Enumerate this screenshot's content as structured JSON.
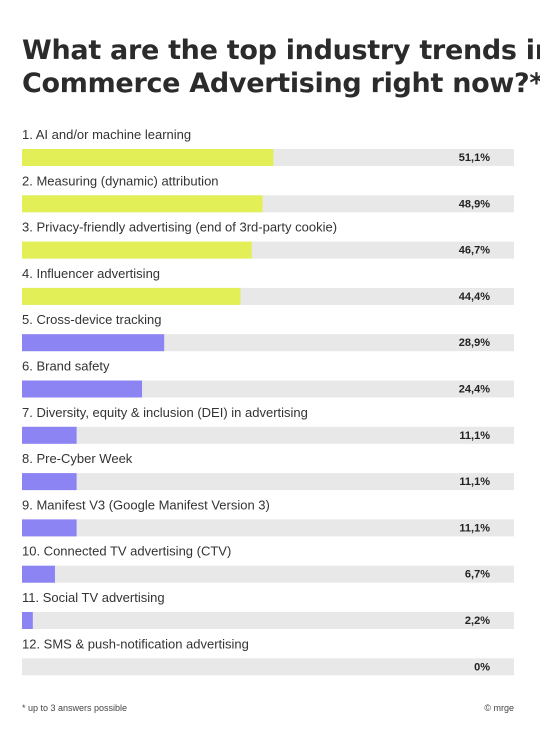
{
  "title_lines": [
    "What are the top industry trends in",
    "Commerce Advertising right now?*"
  ],
  "footnote": "* up to 3 answers possible",
  "credit": "© mrge",
  "colors": {
    "top": "#e3ef57",
    "rest": "#8c84f3",
    "track": "#e8e8e8"
  },
  "chart_data": {
    "type": "bar",
    "orientation": "horizontal",
    "title": "What are the top industry trends in Commerce Advertising right now?*",
    "categories": [
      "1. AI and/or machine learning",
      "2. Measuring (dynamic) attribution",
      "3. Privacy-friendly advertising (end of 3rd-party cookie)",
      "4. Influencer advertising",
      "5. Cross-device tracking",
      "6. Brand safety",
      "7. Diversity, equity & inclusion (DEI) in advertising",
      "8. Pre-Cyber Week",
      "9. Manifest V3 (Google Manifest Version 3)",
      "10. Connected TV advertising (CTV)",
      "11. Social TV advertising",
      "12. SMS & push-notification advertising"
    ],
    "values": [
      51.1,
      48.9,
      46.7,
      44.4,
      28.9,
      24.4,
      11.1,
      11.1,
      11.1,
      6.7,
      2.2,
      0
    ],
    "value_labels": [
      "51,1%",
      "48,9%",
      "46,7%",
      "44,4%",
      "28,9%",
      "24,4%",
      "11,1%",
      "11,1%",
      "11,1%",
      "6,7%",
      "2,2%",
      "0%"
    ],
    "highlight_count": 4,
    "xlim": [
      0,
      100
    ],
    "grid": false,
    "legend": "none"
  }
}
